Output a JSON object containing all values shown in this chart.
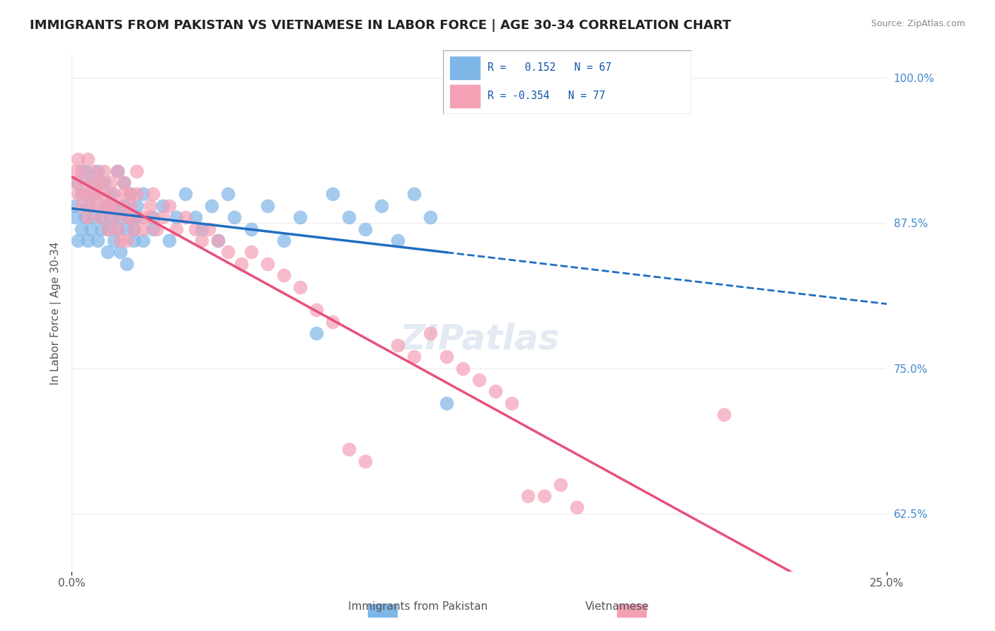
{
  "title": "IMMIGRANTS FROM PAKISTAN VS VIETNAMESE IN LABOR FORCE | AGE 30-34 CORRELATION CHART",
  "source": "Source: ZipAtlas.com",
  "xlabel_ticks": [
    "0.0%",
    "25.0%"
  ],
  "ylabel_label": "In Labor Force | Age 30-34",
  "right_yticks": [
    62.5,
    75.0,
    87.5,
    100.0
  ],
  "right_ytick_labels": [
    "62.5%",
    "75.0%",
    "87.5%",
    "100.0%"
  ],
  "xlim": [
    0.0,
    0.25
  ],
  "ylim": [
    0.575,
    1.02
  ],
  "r_pakistan": 0.152,
  "n_pakistan": 67,
  "r_vietnamese": -0.354,
  "n_vietnamese": 77,
  "pakistan_color": "#7EB6E8",
  "vietnamese_color": "#F4A0B5",
  "pakistan_line_color": "#1F6FBF",
  "vietnamese_line_color": "#E8507A",
  "pakistan_scatter": [
    [
      0.001,
      0.89
    ],
    [
      0.001,
      0.88
    ],
    [
      0.002,
      0.91
    ],
    [
      0.002,
      0.86
    ],
    [
      0.003,
      0.9
    ],
    [
      0.003,
      0.87
    ],
    [
      0.004,
      0.92
    ],
    [
      0.004,
      0.88
    ],
    [
      0.005,
      0.89
    ],
    [
      0.005,
      0.86
    ],
    [
      0.006,
      0.91
    ],
    [
      0.006,
      0.87
    ],
    [
      0.007,
      0.9
    ],
    [
      0.007,
      0.88
    ],
    [
      0.008,
      0.92
    ],
    [
      0.008,
      0.86
    ],
    [
      0.009,
      0.88
    ],
    [
      0.009,
      0.87
    ],
    [
      0.01,
      0.91
    ],
    [
      0.01,
      0.89
    ],
    [
      0.011,
      0.87
    ],
    [
      0.011,
      0.85
    ],
    [
      0.012,
      0.9
    ],
    [
      0.012,
      0.88
    ],
    [
      0.013,
      0.89
    ],
    [
      0.013,
      0.86
    ],
    [
      0.014,
      0.92
    ],
    [
      0.014,
      0.87
    ],
    [
      0.015,
      0.88
    ],
    [
      0.015,
      0.85
    ],
    [
      0.016,
      0.91
    ],
    [
      0.016,
      0.89
    ],
    [
      0.017,
      0.87
    ],
    [
      0.017,
      0.84
    ],
    [
      0.018,
      0.9
    ],
    [
      0.018,
      0.88
    ],
    [
      0.019,
      0.86
    ],
    [
      0.019,
      0.87
    ],
    [
      0.02,
      0.89
    ],
    [
      0.02,
      0.88
    ],
    [
      0.022,
      0.9
    ],
    [
      0.022,
      0.86
    ],
    [
      0.025,
      0.87
    ],
    [
      0.025,
      0.88
    ],
    [
      0.028,
      0.89
    ],
    [
      0.03,
      0.86
    ],
    [
      0.032,
      0.88
    ],
    [
      0.035,
      0.9
    ],
    [
      0.038,
      0.88
    ],
    [
      0.04,
      0.87
    ],
    [
      0.043,
      0.89
    ],
    [
      0.045,
      0.86
    ],
    [
      0.048,
      0.9
    ],
    [
      0.05,
      0.88
    ],
    [
      0.055,
      0.87
    ],
    [
      0.06,
      0.89
    ],
    [
      0.065,
      0.86
    ],
    [
      0.07,
      0.88
    ],
    [
      0.075,
      0.78
    ],
    [
      0.08,
      0.9
    ],
    [
      0.085,
      0.88
    ],
    [
      0.09,
      0.87
    ],
    [
      0.095,
      0.89
    ],
    [
      0.1,
      0.86
    ],
    [
      0.105,
      0.9
    ],
    [
      0.11,
      0.88
    ],
    [
      0.115,
      0.72
    ]
  ],
  "vietnamese_scatter": [
    [
      0.001,
      0.92
    ],
    [
      0.001,
      0.91
    ],
    [
      0.002,
      0.93
    ],
    [
      0.002,
      0.9
    ],
    [
      0.003,
      0.92
    ],
    [
      0.003,
      0.89
    ],
    [
      0.004,
      0.91
    ],
    [
      0.004,
      0.9
    ],
    [
      0.005,
      0.93
    ],
    [
      0.005,
      0.88
    ],
    [
      0.006,
      0.9
    ],
    [
      0.006,
      0.89
    ],
    [
      0.007,
      0.92
    ],
    [
      0.007,
      0.91
    ],
    [
      0.008,
      0.9
    ],
    [
      0.008,
      0.89
    ],
    [
      0.009,
      0.91
    ],
    [
      0.009,
      0.88
    ],
    [
      0.01,
      0.92
    ],
    [
      0.01,
      0.9
    ],
    [
      0.011,
      0.89
    ],
    [
      0.011,
      0.87
    ],
    [
      0.012,
      0.91
    ],
    [
      0.012,
      0.89
    ],
    [
      0.013,
      0.9
    ],
    [
      0.013,
      0.88
    ],
    [
      0.014,
      0.92
    ],
    [
      0.014,
      0.87
    ],
    [
      0.015,
      0.89
    ],
    [
      0.015,
      0.86
    ],
    [
      0.016,
      0.91
    ],
    [
      0.016,
      0.9
    ],
    [
      0.017,
      0.88
    ],
    [
      0.017,
      0.86
    ],
    [
      0.018,
      0.9
    ],
    [
      0.018,
      0.89
    ],
    [
      0.019,
      0.88
    ],
    [
      0.019,
      0.87
    ],
    [
      0.02,
      0.92
    ],
    [
      0.02,
      0.9
    ],
    [
      0.022,
      0.88
    ],
    [
      0.022,
      0.87
    ],
    [
      0.024,
      0.89
    ],
    [
      0.024,
      0.88
    ],
    [
      0.025,
      0.9
    ],
    [
      0.026,
      0.87
    ],
    [
      0.028,
      0.88
    ],
    [
      0.03,
      0.89
    ],
    [
      0.032,
      0.87
    ],
    [
      0.035,
      0.88
    ],
    [
      0.038,
      0.87
    ],
    [
      0.04,
      0.86
    ],
    [
      0.042,
      0.87
    ],
    [
      0.045,
      0.86
    ],
    [
      0.048,
      0.85
    ],
    [
      0.052,
      0.84
    ],
    [
      0.055,
      0.85
    ],
    [
      0.06,
      0.84
    ],
    [
      0.065,
      0.83
    ],
    [
      0.07,
      0.82
    ],
    [
      0.075,
      0.8
    ],
    [
      0.08,
      0.79
    ],
    [
      0.085,
      0.68
    ],
    [
      0.09,
      0.67
    ],
    [
      0.1,
      0.77
    ],
    [
      0.105,
      0.76
    ],
    [
      0.11,
      0.78
    ],
    [
      0.115,
      0.76
    ],
    [
      0.12,
      0.75
    ],
    [
      0.125,
      0.74
    ],
    [
      0.13,
      0.73
    ],
    [
      0.135,
      0.72
    ],
    [
      0.14,
      0.64
    ],
    [
      0.145,
      0.64
    ],
    [
      0.15,
      0.65
    ],
    [
      0.155,
      0.63
    ],
    [
      0.2,
      0.71
    ]
  ]
}
